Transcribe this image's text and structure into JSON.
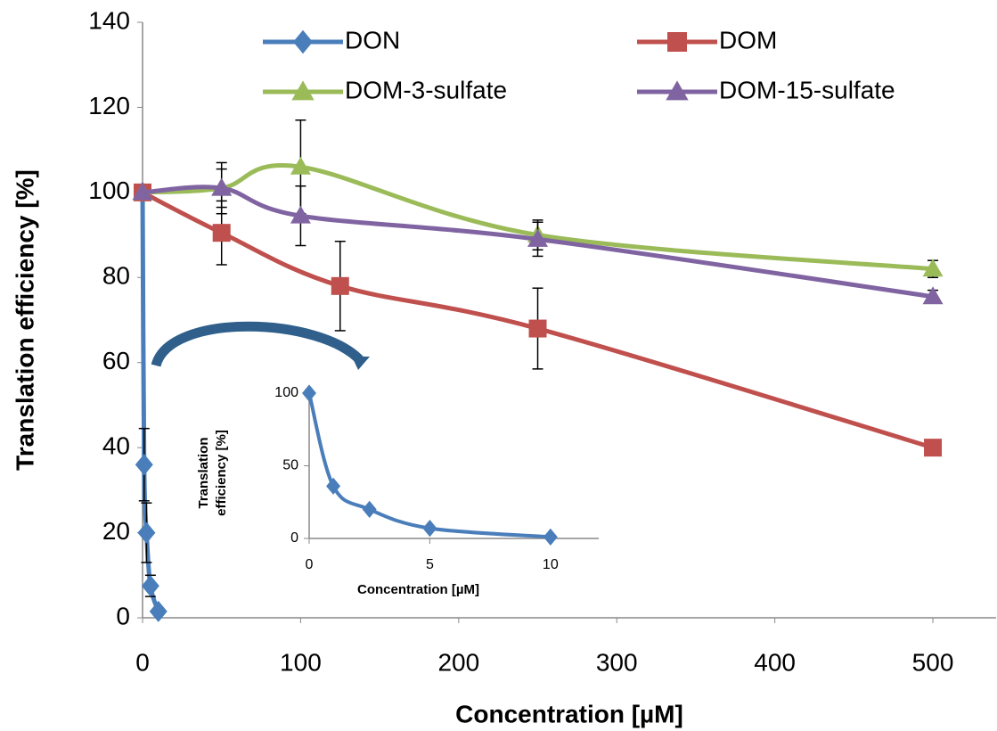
{
  "chart_data": [
    {
      "type": "line",
      "xlabel": "Concentration [µM]",
      "ylabel": "Translation efficiency [%]",
      "xlim": [
        0,
        540
      ],
      "ylim": [
        0,
        140
      ],
      "xticks": [
        0,
        100,
        200,
        300,
        400,
        500
      ],
      "yticks": [
        0,
        20,
        40,
        60,
        80,
        100,
        120,
        140
      ],
      "grid": false,
      "legend": true,
      "legend_loc": "top",
      "series": [
        {
          "name": "DON",
          "color": "#4a7ebb",
          "marker": "diamond",
          "x": [
            0,
            1,
            2.5,
            5,
            10
          ],
          "values": [
            100,
            36,
            20,
            7.5,
            1.5
          ],
          "errors": [
            0,
            8.5,
            7,
            2.5,
            0
          ]
        },
        {
          "name": "DOM",
          "color": "#c0504d",
          "marker": "square",
          "x": [
            0,
            50,
            125,
            250,
            500
          ],
          "values": [
            100,
            90.5,
            78,
            68,
            40
          ],
          "errors": [
            0,
            7.5,
            10.5,
            9.5,
            0
          ]
        },
        {
          "name": "DOM-3-sulfate",
          "color": "#9bbb59",
          "marker": "triangle",
          "x": [
            0,
            50,
            100,
            250,
            500
          ],
          "values": [
            100,
            101,
            106,
            90,
            82
          ],
          "errors": [
            0,
            6,
            11,
            3.5,
            2
          ]
        },
        {
          "name": "DOM-15-sulfate",
          "color": "#8064a2",
          "marker": "triangle",
          "x": [
            0,
            50,
            100,
            250,
            500
          ],
          "values": [
            100,
            101,
            94.5,
            89,
            75.5
          ],
          "errors": [
            0,
            4.5,
            7,
            4,
            1.5
          ]
        }
      ]
    },
    {
      "type": "line",
      "xlabel": "Concentration [µM]",
      "ylabel": [
        "Translation",
        "efficiency [%]"
      ],
      "xlim": [
        0,
        12
      ],
      "ylim": [
        0,
        100
      ],
      "xticks": [
        0,
        5,
        10
      ],
      "yticks": [
        0,
        50,
        100
      ],
      "grid": false,
      "legend": false,
      "series": [
        {
          "name": "DON",
          "color": "#4a7ebb",
          "marker": "diamond",
          "x": [
            0,
            1,
            2.5,
            5,
            10
          ],
          "values": [
            100,
            36,
            20,
            7,
            1
          ]
        }
      ]
    }
  ]
}
